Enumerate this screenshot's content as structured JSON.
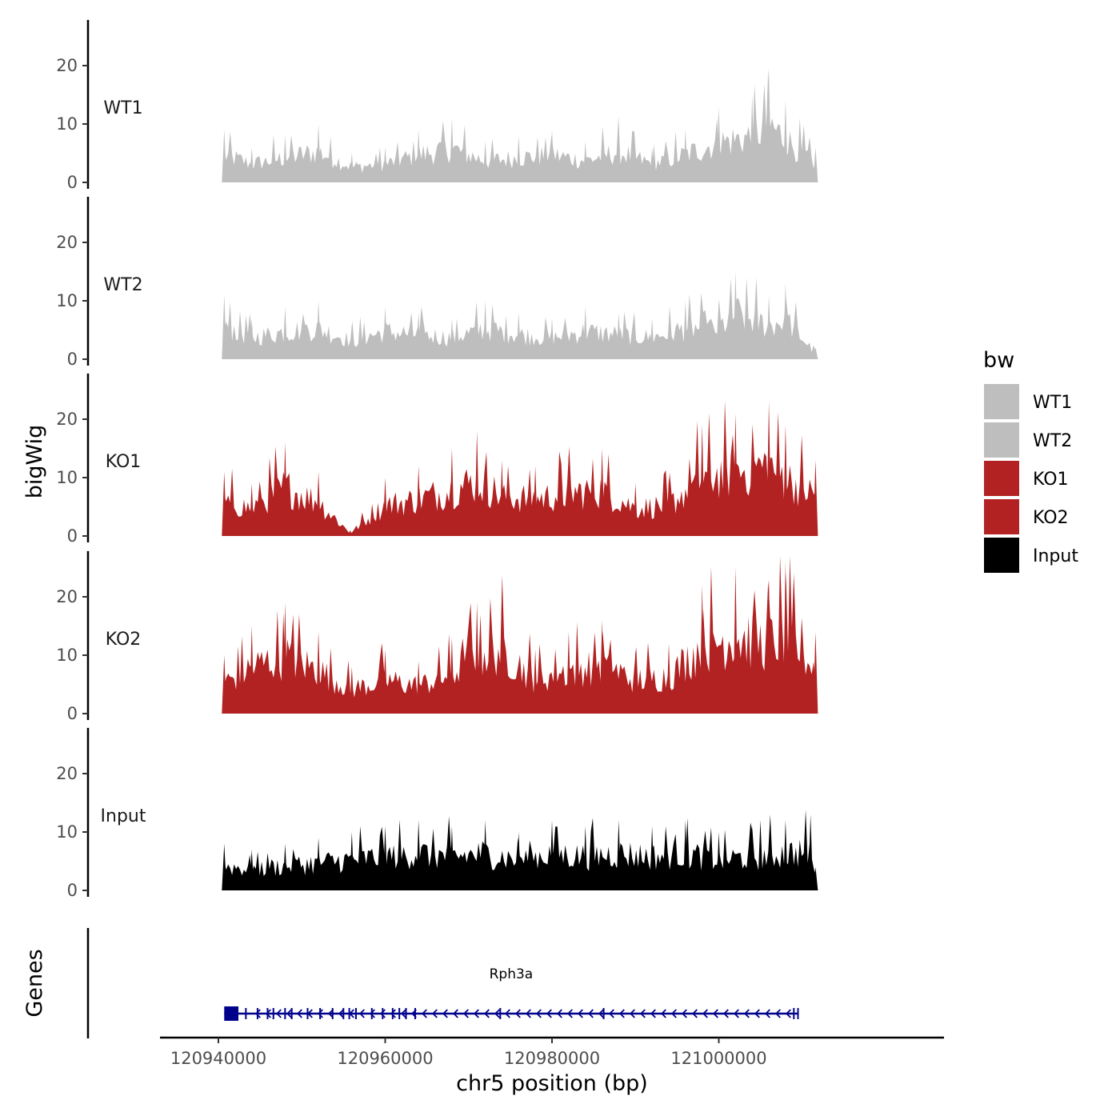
{
  "chart_data": {
    "type": "area",
    "region": "chr5",
    "xlabel": "chr5 position (bp)",
    "ylabel": "bigWig",
    "genes_label": "Genes",
    "xlim": [
      120933000,
      121027000
    ],
    "data_range": [
      120940700,
      121011600
    ],
    "x_ticks": [
      120940000,
      120960000,
      120980000,
      121000000
    ],
    "x_tick_labels": [
      "120940000",
      "120960000",
      "120980000",
      "121000000"
    ],
    "ylim": [
      0,
      27
    ],
    "y_ticks": [
      0,
      10,
      20
    ],
    "y_tick_labels": [
      "0",
      "10",
      "20"
    ],
    "legend": {
      "title": "bw",
      "entries": [
        {
          "name": "WT1",
          "color": "#bebebe"
        },
        {
          "name": "WT2",
          "color": "#bebebe"
        },
        {
          "name": "KO1",
          "color": "#b22222"
        },
        {
          "name": "KO2",
          "color": "#b22222"
        },
        {
          "name": "Input",
          "color": "#000000"
        }
      ]
    },
    "tracks": [
      {
        "name": "WT1",
        "color": "#bebebe",
        "x": [
          120940700,
          120944000,
          120948000,
          120952000,
          120956000,
          120960000,
          120964000,
          120968000,
          120972000,
          120976000,
          120980000,
          120984000,
          120988000,
          120992000,
          120996000,
          121000000,
          121004000,
          121006000,
          121008000,
          121011600
        ],
        "values": [
          9,
          6,
          8,
          10,
          5,
          6,
          9,
          11,
          7,
          8,
          9,
          7,
          10,
          6,
          9,
          13,
          15,
          19,
          14,
          6
        ]
      },
      {
        "name": "WT2",
        "color": "#bebebe",
        "x": [
          120940700,
          120944000,
          120948000,
          120952000,
          120956000,
          120960000,
          120964000,
          120968000,
          120972000,
          120976000,
          120980000,
          120984000,
          120988000,
          120992000,
          120996000,
          121000000,
          121002000,
          121006000,
          121008000,
          121011600
        ],
        "values": [
          11,
          7,
          9,
          10,
          6,
          9,
          8,
          7,
          10,
          8,
          7,
          9,
          8,
          7,
          10,
          10,
          15,
          11,
          13,
          2
        ]
      },
      {
        "name": "KO1",
        "color": "#b22222",
        "x": [
          120940700,
          120944000,
          120948000,
          120952000,
          120955800,
          120960000,
          120964000,
          120968000,
          120971000,
          120974000,
          120978000,
          120982000,
          120986000,
          120990000,
          120994000,
          120998000,
          121002000,
          121006000,
          121008000,
          121011600
        ],
        "values": [
          11,
          9,
          16,
          11,
          1,
          10,
          12,
          15,
          18,
          13,
          12,
          14,
          15,
          9,
          10,
          19,
          21,
          23,
          19,
          13
        ]
      },
      {
        "name": "KO2",
        "color": "#b22222",
        "x": [
          120940700,
          120944000,
          120948000,
          120952000,
          120956000,
          120960000,
          120964000,
          120968000,
          120971000,
          120974000,
          120978000,
          120982000,
          120986000,
          120990000,
          120994000,
          120998000,
          121002000,
          121006000,
          121008000,
          121011600
        ],
        "values": [
          10,
          15,
          19,
          14,
          8,
          11,
          9,
          13,
          19,
          21,
          11,
          14,
          16,
          11,
          12,
          22,
          25,
          23,
          26,
          14
        ]
      },
      {
        "name": "Input",
        "color": "#000000",
        "x": [
          120940700,
          120944000,
          120948000,
          120952000,
          120956000,
          120960000,
          120964000,
          120968000,
          120972000,
          120976000,
          120980000,
          120984000,
          120988000,
          120992000,
          120996000,
          121000000,
          121004000,
          121008000,
          121011000,
          121011600
        ],
        "values": [
          8,
          7,
          8,
          9,
          10,
          11,
          12,
          11,
          12,
          10,
          12,
          11,
          12,
          11,
          12,
          10,
          11,
          12,
          13,
          4
        ]
      }
    ],
    "gene": {
      "name": "Rph3a",
      "strand": "-",
      "start": 120940700,
      "end": 121009500,
      "color": "#00008b",
      "exons": [
        [
          120940700,
          120942400
        ],
        [
          120943200,
          120943300
        ],
        [
          120944600,
          120944700
        ],
        [
          120945800,
          120945900
        ],
        [
          120946500,
          120946600
        ],
        [
          120947900,
          120948000
        ],
        [
          120948700,
          120948800
        ],
        [
          120950600,
          120950700
        ],
        [
          120952100,
          120952200
        ],
        [
          120953600,
          120953700
        ],
        [
          120954900,
          120955000
        ],
        [
          120955600,
          120955700
        ],
        [
          120956400,
          120956500
        ],
        [
          120958300,
          120958400
        ],
        [
          120959600,
          120959700
        ],
        [
          120960800,
          120960900
        ],
        [
          120961600,
          120961700
        ],
        [
          120962400,
          120962500
        ],
        [
          120963500,
          120963600
        ],
        [
          120973700,
          120973800
        ],
        [
          120986100,
          120986200
        ],
        [
          121008900,
          121009000
        ],
        [
          121009400,
          121009500
        ]
      ]
    }
  }
}
